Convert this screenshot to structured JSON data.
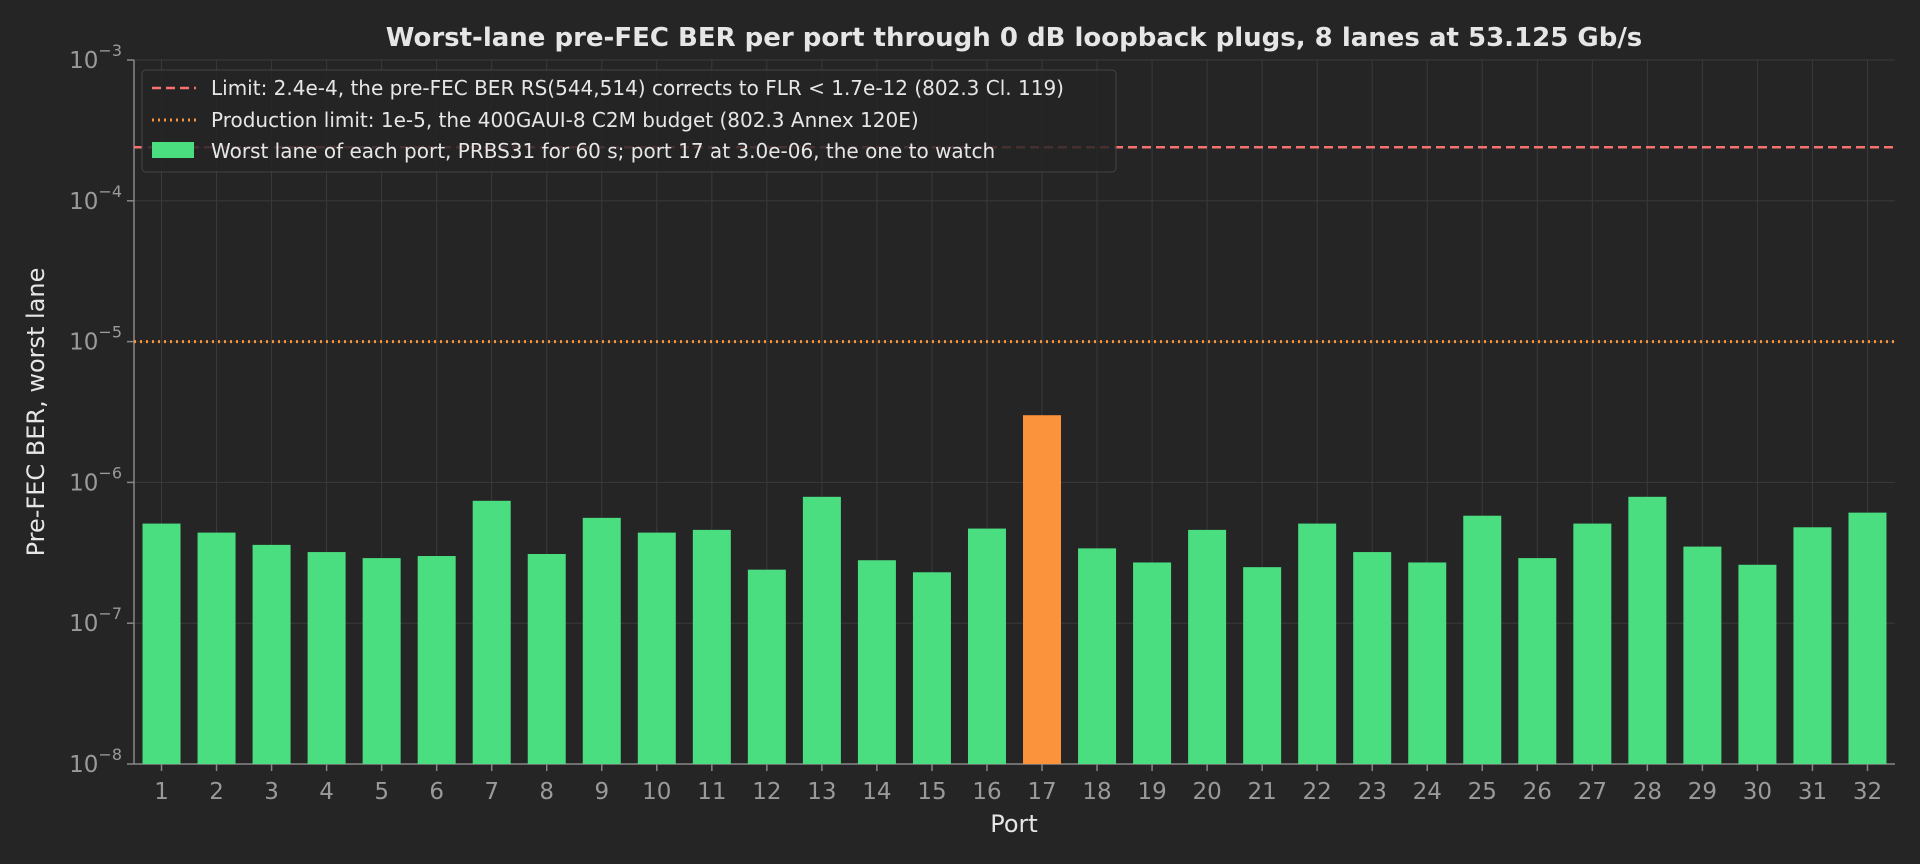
{
  "chart_data": {
    "type": "bar",
    "title": "Worst-lane pre-FEC BER per port through 0 dB loopback plugs, 8 lanes at 53.125 Gb/s",
    "xlabel": "Port",
    "ylabel": "Pre-FEC BER, worst lane",
    "yscale": "log",
    "ylim": [
      1e-08,
      0.001
    ],
    "yticks": [
      {
        "base": "10",
        "exp": "−8",
        "value": 1e-08
      },
      {
        "base": "10",
        "exp": "−7",
        "value": 1e-07
      },
      {
        "base": "10",
        "exp": "−6",
        "value": 1e-06
      },
      {
        "base": "10",
        "exp": "−5",
        "value": 1e-05
      },
      {
        "base": "10",
        "exp": "−4",
        "value": 0.0001
      },
      {
        "base": "10",
        "exp": "−3",
        "value": 0.001
      }
    ],
    "grid": true,
    "legend_position": "top-left",
    "categories": [
      "1",
      "2",
      "3",
      "4",
      "5",
      "6",
      "7",
      "8",
      "9",
      "10",
      "11",
      "12",
      "13",
      "14",
      "15",
      "16",
      "17",
      "18",
      "19",
      "20",
      "21",
      "22",
      "23",
      "24",
      "25",
      "26",
      "27",
      "28",
      "29",
      "30",
      "31",
      "32"
    ],
    "series": [
      {
        "name": "Worst lane of each port, PRBS31 for 60 s; port 17 at 3.0e-06, the one to watch",
        "color": "#4ade80",
        "highlight_color": "#fb923c",
        "highlight_index": 16,
        "values": [
          5.1e-07,
          4.4e-07,
          3.6e-07,
          3.2e-07,
          2.9e-07,
          3e-07,
          7.4e-07,
          3.1e-07,
          5.6e-07,
          4.4e-07,
          4.6e-07,
          2.4e-07,
          7.9e-07,
          2.8e-07,
          2.3e-07,
          4.7e-07,
          3e-06,
          3.4e-07,
          2.7e-07,
          4.6e-07,
          2.5e-07,
          5.1e-07,
          3.2e-07,
          2.7e-07,
          5.8e-07,
          2.9e-07,
          5.1e-07,
          7.9e-07,
          3.5e-07,
          2.6e-07,
          4.8e-07,
          6.1e-07
        ]
      }
    ],
    "reference_lines": [
      {
        "name": "Limit: 2.4e-4, the pre-FEC BER RS(544,514) corrects to FLR < 1.7e-12 (802.3 Cl. 119)",
        "value": 0.00024,
        "style": "dashed",
        "color": "#f87171"
      },
      {
        "name": "Production limit: 1e-5, the 400GAUI-8 C2M budget (802.3 Annex 120E)",
        "value": 1e-05,
        "style": "dotted",
        "color": "#fb923c"
      }
    ]
  }
}
